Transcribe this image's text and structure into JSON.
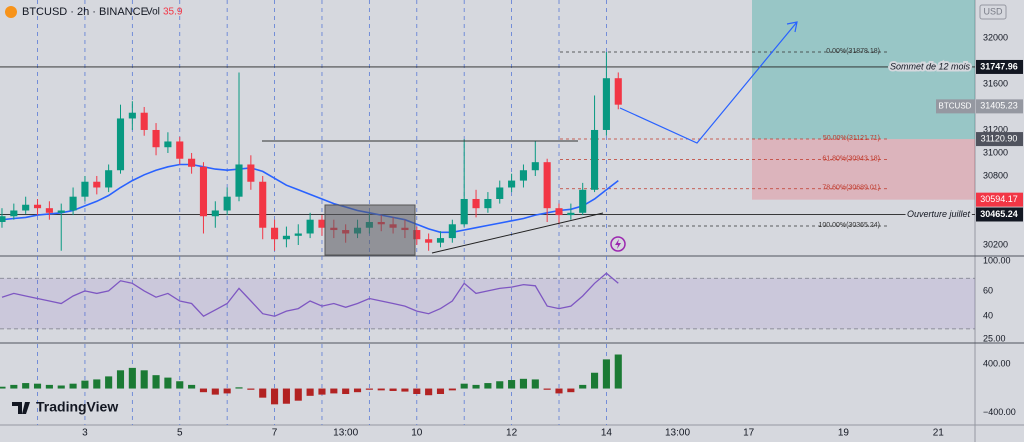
{
  "header": {
    "symbol": "BTCUSD · 2h · BINANCE",
    "vol_label": "Vol",
    "vol_value": "35.9",
    "logo": "TradingView"
  },
  "chart_data": [
    {
      "type": "candlestick",
      "currency": "USD",
      "xlim": [
        -43,
        450.6
      ],
      "xticks": [
        {
          "value": 0,
          "label": "3"
        },
        {
          "value": 48,
          "label": "5"
        },
        {
          "value": 96,
          "label": "7"
        },
        {
          "value": 132,
          "label": "13:00"
        },
        {
          "value": 168,
          "label": "10"
        },
        {
          "value": 216,
          "label": "12"
        },
        {
          "value": 264,
          "label": "14"
        },
        {
          "value": 300,
          "label": "13:00"
        },
        {
          "value": 336,
          "label": "17"
        },
        {
          "value": 384,
          "label": "19"
        },
        {
          "value": 432,
          "label": "21"
        }
      ],
      "vgrid": [
        -24,
        0,
        24,
        48,
        72,
        96,
        120,
        144,
        168,
        192,
        216,
        240,
        264
      ],
      "ylim": [
        30113,
        32330
      ],
      "yticks": [
        30200,
        30800,
        31000,
        31200,
        31600,
        32000
      ],
      "up_color": "#089981",
      "down_color": "#f23645",
      "x": [
        -42,
        -36,
        -30,
        -24,
        -18,
        -12,
        -6,
        0,
        6,
        12,
        18,
        24,
        30,
        36,
        42,
        48,
        54,
        60,
        66,
        72,
        78,
        84,
        90,
        96,
        102,
        108,
        114,
        120,
        126,
        132,
        138,
        144,
        150,
        156,
        162,
        168,
        174,
        180,
        186,
        192,
        198,
        204,
        210,
        216,
        222,
        228,
        234,
        240,
        246,
        252,
        258,
        264,
        270
      ],
      "ohlc": [
        [
          30400,
          30520,
          30350,
          30450
        ],
        [
          30450,
          30560,
          30420,
          30500
        ],
        [
          30500,
          30620,
          30470,
          30550
        ],
        [
          30550,
          30600,
          30460,
          30520
        ],
        [
          30520,
          30580,
          30420,
          30480
        ],
        [
          30480,
          30560,
          30150,
          30500
        ],
        [
          30500,
          30700,
          30460,
          30620
        ],
        [
          30620,
          30800,
          30580,
          30750
        ],
        [
          30750,
          30800,
          30640,
          30700
        ],
        [
          30700,
          30900,
          30660,
          30850
        ],
        [
          30850,
          31420,
          30820,
          31300
        ],
        [
          31300,
          31450,
          31200,
          31350
        ],
        [
          31350,
          31400,
          31150,
          31200
        ],
        [
          31200,
          31260,
          30980,
          31050
        ],
        [
          31050,
          31180,
          31000,
          31100
        ],
        [
          31100,
          31140,
          30900,
          30950
        ],
        [
          30950,
          31000,
          30820,
          30880
        ],
        [
          30880,
          30920,
          30300,
          30450
        ],
        [
          30450,
          30580,
          30350,
          30500
        ],
        [
          30500,
          30700,
          30460,
          30620
        ],
        [
          30620,
          31700,
          30580,
          30900
        ],
        [
          30900,
          30980,
          30680,
          30750
        ],
        [
          30750,
          30800,
          30250,
          30350
        ],
        [
          30350,
          30420,
          30150,
          30250
        ],
        [
          30250,
          30360,
          30180,
          30280
        ],
        [
          30280,
          30380,
          30200,
          30300
        ],
        [
          30300,
          30480,
          30260,
          30420
        ],
        [
          30420,
          30460,
          30280,
          30350
        ],
        [
          30350,
          30420,
          30260,
          30330
        ],
        [
          30330,
          30380,
          30220,
          30300
        ],
        [
          30300,
          30420,
          30260,
          30350
        ],
        [
          30350,
          30480,
          30300,
          30400
        ],
        [
          30400,
          30460,
          30320,
          30380
        ],
        [
          30380,
          30440,
          30300,
          30350
        ],
        [
          30350,
          30420,
          30260,
          30330
        ],
        [
          30330,
          30360,
          30200,
          30250
        ],
        [
          30250,
          30300,
          30150,
          30220
        ],
        [
          30220,
          30320,
          30180,
          30260
        ],
        [
          30260,
          30420,
          30220,
          30380
        ],
        [
          30380,
          31120,
          30360,
          30600
        ],
        [
          30600,
          30680,
          30440,
          30520
        ],
        [
          30520,
          30660,
          30480,
          30600
        ],
        [
          30600,
          30760,
          30560,
          30700
        ],
        [
          30700,
          30820,
          30660,
          30760
        ],
        [
          30760,
          30900,
          30700,
          30850
        ],
        [
          30850,
          31100,
          30800,
          30920
        ],
        [
          30920,
          30950,
          30400,
          30520
        ],
        [
          30520,
          30560,
          30380,
          30460
        ],
        [
          30460,
          30560,
          30420,
          30480
        ],
        [
          30480,
          30740,
          30460,
          30680
        ],
        [
          30680,
          31500,
          30660,
          31200
        ],
        [
          31200,
          31878,
          31150,
          31650
        ],
        [
          31650,
          31700,
          31380,
          31420
        ]
      ],
      "ma": {
        "color": "#2962ff",
        "values": [
          30420,
          30430,
          30440,
          30460,
          30470,
          30480,
          30500,
          30540,
          30580,
          30630,
          30700,
          30760,
          30810,
          30850,
          30880,
          30900,
          30900,
          30880,
          30860,
          30850,
          30860,
          30870,
          30840,
          30780,
          30720,
          30680,
          30640,
          30600,
          30560,
          30530,
          30500,
          30480,
          30460,
          30440,
          30420,
          30380,
          30340,
          30310,
          30310,
          30330,
          30350,
          30370,
          30390,
          30410,
          30430,
          30460,
          30480,
          30500,
          30510,
          30540,
          30600,
          30680,
          30760
        ]
      },
      "levels": [
        {
          "name": "Sommet de 12 mois",
          "value": 31747.96
        },
        {
          "name": "Ouverture juillet",
          "value": 30465.24
        }
      ],
      "entry": {
        "value": 31120.9,
        "value_label": "31120.90"
      },
      "stop": {
        "value": 30594.17,
        "color": "#f23645"
      },
      "last_price": {
        "name": "BTCUSD",
        "value": 31405.23
      },
      "fib": [
        {
          "value": 31878.18,
          "label": "0.00%(31878.18)"
        },
        {
          "value": 31121.71,
          "label": "50.00%(31121.71)"
        },
        {
          "value": 30943.18,
          "label": "61.80%(30943.18)"
        },
        {
          "value": 30689.01,
          "label": "78.60%(30689.01)"
        },
        {
          "value": 30365.24,
          "label": "100.00%(30365.24)"
        }
      ]
    },
    {
      "type": "line",
      "color": "#7e57c2",
      "ylim": [
        19.6,
        86.8
      ],
      "yticks": [
        40,
        60
      ],
      "band": [
        30,
        70
      ],
      "scale_labels": [
        "100.00",
        "25.00"
      ],
      "values": [
        55,
        58,
        56,
        54,
        52,
        50,
        56,
        60,
        58,
        60,
        68,
        66,
        60,
        55,
        58,
        52,
        50,
        40,
        45,
        50,
        62,
        52,
        42,
        40,
        44,
        46,
        52,
        48,
        50,
        47,
        50,
        54,
        52,
        50,
        48,
        44,
        42,
        46,
        52,
        66,
        58,
        60,
        62,
        63,
        65,
        64,
        48,
        46,
        48,
        56,
        66,
        74,
        66
      ]
    },
    {
      "type": "bar",
      "pos_color": "#1b7a34",
      "neg_color": "#b22222",
      "ylim": [
        -600,
        733
      ],
      "yticks": [
        {
          "value": 400,
          "label": "400.00"
        },
        {
          "value": -400,
          "label": "−400.00"
        }
      ],
      "values": [
        30,
        60,
        90,
        80,
        60,
        50,
        80,
        130,
        150,
        200,
        300,
        340,
        300,
        220,
        180,
        120,
        60,
        -60,
        -100,
        -80,
        20,
        -20,
        -150,
        -260,
        -250,
        -200,
        -120,
        -100,
        -80,
        -90,
        -60,
        -20,
        -30,
        -40,
        -50,
        -90,
        -110,
        -90,
        -30,
        80,
        60,
        90,
        120,
        140,
        160,
        150,
        -20,
        -80,
        -60,
        60,
        260,
        480,
        560
      ]
    }
  ]
}
